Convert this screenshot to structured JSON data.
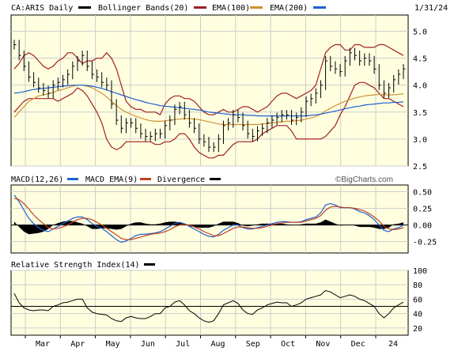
{
  "colors": {
    "background": "#ffffff",
    "plot_bg": "#ffffe0",
    "grid": "#cccccc",
    "border": "#000000",
    "price": "#000000",
    "bollinger": "#a02020",
    "ema100": "#d09030",
    "ema200": "#2060d0",
    "macd": "#2060d0",
    "macd_ema": "#c04020",
    "divergence": "#000000",
    "rsi": "#000000"
  },
  "header": {
    "symbol": "CA:ARIS Daily",
    "bollinger_label": "Bollinger Bands(20)",
    "ema100_label": "EMA(100)",
    "ema200_label": "EMA(200)",
    "date": "1/31/24"
  },
  "macd_header": {
    "macd_label": "MACD(12,26)",
    "macd_ema_label": "MACD EMA(9)",
    "divergence_label": "Divergence",
    "watermark": "©BigCharts.com"
  },
  "rsi_header": {
    "label": "Relative Strength Index(14)"
  },
  "chart_data": [
    {
      "type": "line",
      "title": "CA:ARIS Daily",
      "yticks": [
        2.5,
        3.0,
        3.5,
        4.0,
        4.5,
        5.0
      ],
      "ytick_labels": [
        "2.5",
        "3.0",
        "3.5",
        "4.0",
        "4.5",
        "5.0"
      ],
      "ylim": [
        2.5,
        5.3
      ],
      "xtick_labels": [
        "Mar",
        "Apr",
        "May",
        "Jun",
        "Jul",
        "Aug",
        "Sep",
        "Oct",
        "Nov",
        "Dec",
        "24"
      ],
      "series": [
        {
          "name": "Price",
          "kind": "ohlc-bars",
          "values": [
            4.75,
            4.55,
            4.35,
            4.15,
            4.05,
            3.95,
            3.9,
            3.85,
            4.0,
            4.05,
            4.1,
            4.2,
            4.35,
            4.45,
            4.55,
            4.35,
            4.2,
            4.15,
            4.05,
            4.0,
            3.65,
            3.35,
            3.2,
            3.3,
            3.3,
            3.2,
            3.1,
            3.05,
            3.05,
            3.1,
            3.1,
            3.25,
            3.35,
            3.55,
            3.6,
            3.45,
            3.3,
            3.2,
            3.0,
            2.95,
            2.85,
            2.85,
            3.0,
            3.25,
            3.3,
            3.45,
            3.4,
            3.25,
            3.1,
            3.05,
            3.15,
            3.2,
            3.3,
            3.35,
            3.4,
            3.45,
            3.45,
            3.35,
            3.4,
            3.5,
            3.7,
            3.75,
            3.85,
            4.0,
            4.45,
            4.35,
            4.3,
            4.25,
            4.45,
            4.6,
            4.55,
            4.45,
            4.5,
            4.45,
            4.3,
            4.0,
            3.85,
            3.95,
            4.1,
            4.2,
            4.3
          ]
        },
        {
          "name": "Bollinger Upper",
          "values": [
            4.3,
            4.4,
            4.55,
            4.6,
            4.55,
            4.45,
            4.35,
            4.3,
            4.35,
            4.45,
            4.5,
            4.6,
            4.6,
            4.5,
            4.4,
            4.45,
            4.45,
            4.5,
            4.5,
            4.6,
            4.5,
            4.3,
            4.0,
            3.7,
            3.6,
            3.55,
            3.55,
            3.5,
            3.5,
            3.5,
            3.45,
            3.65,
            3.75,
            3.8,
            3.8,
            3.75,
            3.75,
            3.7,
            3.6,
            3.5,
            3.45,
            3.45,
            3.5,
            3.55,
            3.5,
            3.5,
            3.55,
            3.6,
            3.6,
            3.55,
            3.5,
            3.55,
            3.6,
            3.7,
            3.8,
            3.85,
            3.85,
            3.8,
            3.75,
            3.8,
            3.85,
            3.9,
            4.0,
            4.3,
            4.6,
            4.7,
            4.75,
            4.75,
            4.65,
            4.65,
            4.75,
            4.75,
            4.7,
            4.7,
            4.7,
            4.75,
            4.75,
            4.7,
            4.65,
            4.6,
            4.55
          ]
        },
        {
          "name": "Bollinger Lower",
          "values": [
            3.5,
            3.6,
            3.7,
            3.75,
            3.75,
            3.75,
            3.75,
            3.75,
            3.75,
            3.7,
            3.75,
            3.8,
            3.85,
            3.95,
            3.9,
            3.8,
            3.65,
            3.5,
            3.3,
            3.0,
            2.85,
            2.8,
            2.85,
            2.95,
            2.95,
            2.95,
            2.95,
            2.95,
            2.95,
            2.9,
            2.9,
            2.95,
            2.95,
            3.0,
            3.1,
            3.1,
            3.0,
            2.85,
            2.75,
            2.7,
            2.65,
            2.65,
            2.7,
            2.7,
            2.8,
            2.9,
            2.95,
            2.95,
            2.95,
            2.95,
            3.0,
            3.1,
            3.15,
            3.2,
            3.25,
            3.25,
            3.25,
            3.15,
            3.0,
            3.0,
            3.0,
            3.0,
            3.0,
            3.0,
            3.05,
            3.15,
            3.25,
            3.45,
            3.6,
            3.8,
            4.0,
            4.05,
            4.05,
            4.0,
            3.95,
            3.85,
            3.75,
            3.75,
            3.7,
            3.65,
            3.6
          ]
        },
        {
          "name": "EMA(100)",
          "values": [
            3.4,
            3.5,
            3.6,
            3.7,
            3.75,
            3.8,
            3.82,
            3.84,
            3.86,
            3.9,
            3.92,
            3.95,
            3.98,
            4.0,
            4.0,
            3.98,
            3.95,
            3.9,
            3.85,
            3.78,
            3.7,
            3.62,
            3.55,
            3.5,
            3.46,
            3.42,
            3.39,
            3.36,
            3.34,
            3.33,
            3.33,
            3.34,
            3.35,
            3.36,
            3.37,
            3.38,
            3.38,
            3.37,
            3.36,
            3.34,
            3.32,
            3.3,
            3.28,
            3.27,
            3.27,
            3.27,
            3.27,
            3.27,
            3.27,
            3.27,
            3.27,
            3.28,
            3.29,
            3.3,
            3.31,
            3.32,
            3.33,
            3.33,
            3.34,
            3.35,
            3.37,
            3.39,
            3.42,
            3.46,
            3.52,
            3.57,
            3.62,
            3.66,
            3.7,
            3.73,
            3.76,
            3.78,
            3.8,
            3.81,
            3.82,
            3.83,
            3.82,
            3.82,
            3.82,
            3.83,
            3.84
          ]
        },
        {
          "name": "EMA(200)",
          "values": [
            3.85,
            3.86,
            3.88,
            3.9,
            3.92,
            3.93,
            3.94,
            3.95,
            3.96,
            3.97,
            3.98,
            3.99,
            4.0,
            4.0,
            4.0,
            3.99,
            3.98,
            3.96,
            3.94,
            3.91,
            3.88,
            3.85,
            3.82,
            3.79,
            3.76,
            3.73,
            3.71,
            3.68,
            3.66,
            3.64,
            3.62,
            3.61,
            3.6,
            3.59,
            3.58,
            3.57,
            3.56,
            3.55,
            3.54,
            3.52,
            3.5,
            3.49,
            3.48,
            3.47,
            3.46,
            3.45,
            3.45,
            3.45,
            3.44,
            3.44,
            3.43,
            3.43,
            3.43,
            3.43,
            3.43,
            3.43,
            3.43,
            3.43,
            3.43,
            3.43,
            3.43,
            3.44,
            3.45,
            3.46,
            3.48,
            3.5,
            3.52,
            3.54,
            3.56,
            3.58,
            3.6,
            3.61,
            3.63,
            3.64,
            3.65,
            3.66,
            3.67,
            3.67,
            3.68,
            3.68,
            3.69
          ]
        }
      ]
    },
    {
      "type": "line",
      "title": "MACD(12,26)",
      "yticks": [
        -0.25,
        0.0,
        0.25,
        0.5
      ],
      "ytick_labels": [
        "-0.25",
        "0.00",
        "0.25",
        "0.50"
      ],
      "ylim": [
        -0.42,
        0.6
      ],
      "series": [
        {
          "name": "MACD",
          "values": [
            0.45,
            0.35,
            0.22,
            0.1,
            0.02,
            -0.04,
            -0.08,
            -0.1,
            -0.06,
            -0.02,
            0.02,
            0.06,
            0.1,
            0.12,
            0.12,
            0.08,
            0.02,
            -0.02,
            -0.05,
            -0.1,
            -0.16,
            -0.22,
            -0.26,
            -0.24,
            -0.2,
            -0.16,
            -0.14,
            -0.14,
            -0.13,
            -0.12,
            -0.1,
            -0.06,
            -0.02,
            0.02,
            0.04,
            0.02,
            -0.02,
            -0.06,
            -0.1,
            -0.14,
            -0.17,
            -0.18,
            -0.14,
            -0.08,
            -0.04,
            0.0,
            0.0,
            -0.04,
            -0.06,
            -0.06,
            -0.04,
            -0.02,
            0.0,
            0.02,
            0.04,
            0.05,
            0.05,
            0.04,
            0.04,
            0.05,
            0.08,
            0.1,
            0.12,
            0.18,
            0.3,
            0.32,
            0.3,
            0.26,
            0.26,
            0.26,
            0.24,
            0.2,
            0.18,
            0.14,
            0.08,
            0.0,
            -0.08,
            -0.1,
            -0.06,
            -0.04,
            0.0
          ]
        },
        {
          "name": "MACD EMA(9)",
          "values": [
            0.4,
            0.38,
            0.32,
            0.24,
            0.15,
            0.08,
            0.02,
            -0.04,
            -0.06,
            -0.05,
            -0.03,
            0.0,
            0.04,
            0.08,
            0.1,
            0.1,
            0.08,
            0.04,
            0.0,
            -0.05,
            -0.1,
            -0.15,
            -0.2,
            -0.22,
            -0.22,
            -0.2,
            -0.18,
            -0.16,
            -0.14,
            -0.13,
            -0.12,
            -0.1,
            -0.07,
            -0.03,
            0.0,
            0.01,
            0.0,
            -0.03,
            -0.06,
            -0.1,
            -0.13,
            -0.16,
            -0.16,
            -0.13,
            -0.09,
            -0.05,
            -0.03,
            -0.03,
            -0.04,
            -0.05,
            -0.05,
            -0.04,
            -0.02,
            0.0,
            0.02,
            0.03,
            0.04,
            0.04,
            0.04,
            0.04,
            0.06,
            0.08,
            0.1,
            0.14,
            0.22,
            0.27,
            0.28,
            0.27,
            0.26,
            0.26,
            0.25,
            0.23,
            0.21,
            0.17,
            0.12,
            0.06,
            -0.02,
            -0.06,
            -0.07,
            -0.06,
            -0.04
          ]
        }
      ]
    },
    {
      "type": "line",
      "title": "Relative Strength Index(14)",
      "yticks": [
        20,
        40,
        60,
        80,
        100
      ],
      "ytick_labels": [
        "20",
        "40",
        "60",
        "80",
        "100"
      ],
      "ylim": [
        10,
        100
      ],
      "reference_line": 50,
      "series": [
        {
          "name": "RSI",
          "values": [
            68,
            55,
            48,
            45,
            44,
            45,
            45,
            44,
            50,
            52,
            55,
            56,
            58,
            60,
            60,
            48,
            42,
            40,
            39,
            38,
            33,
            30,
            29,
            34,
            36,
            34,
            33,
            33,
            36,
            40,
            40,
            48,
            50,
            56,
            58,
            52,
            44,
            40,
            34,
            30,
            28,
            30,
            40,
            52,
            55,
            58,
            54,
            45,
            40,
            39,
            45,
            48,
            52,
            54,
            56,
            55,
            55,
            50,
            52,
            55,
            60,
            62,
            64,
            66,
            72,
            70,
            66,
            62,
            64,
            66,
            64,
            60,
            58,
            54,
            50,
            40,
            34,
            40,
            48,
            52,
            56
          ]
        }
      ]
    }
  ]
}
